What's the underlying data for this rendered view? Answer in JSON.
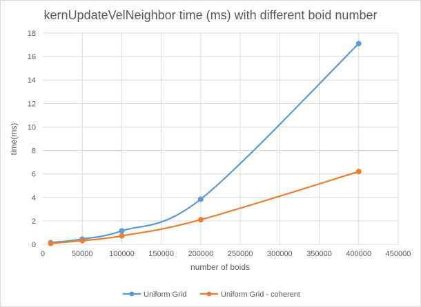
{
  "chart_data": {
    "type": "line",
    "title": "kernUpdateVelNeighbor time (ms) with different boid number",
    "xlabel": "number of boids",
    "ylabel": "time(ms)",
    "xlim": [
      0,
      450000
    ],
    "ylim": [
      0,
      18
    ],
    "x_ticks": [
      "0",
      "50000",
      "100000",
      "150000",
      "200000",
      "250000",
      "300000",
      "350000",
      "400000",
      "450000"
    ],
    "y_ticks": [
      "0",
      "2",
      "4",
      "6",
      "8",
      "10",
      "12",
      "14",
      "16",
      "18"
    ],
    "grid": true,
    "legend_position": "bottom",
    "series": [
      {
        "name": "Uniform Grid",
        "color": "#5b9bd5",
        "x": [
          10000,
          50000,
          100000,
          200000,
          400000
        ],
        "y": [
          0.15,
          0.45,
          1.15,
          3.85,
          17.1
        ]
      },
      {
        "name": "Uniform Grid - coherent",
        "color": "#ed7d31",
        "x": [
          10000,
          50000,
          100000,
          200000,
          400000
        ],
        "y": [
          0.08,
          0.32,
          0.72,
          2.1,
          6.2
        ]
      }
    ]
  }
}
